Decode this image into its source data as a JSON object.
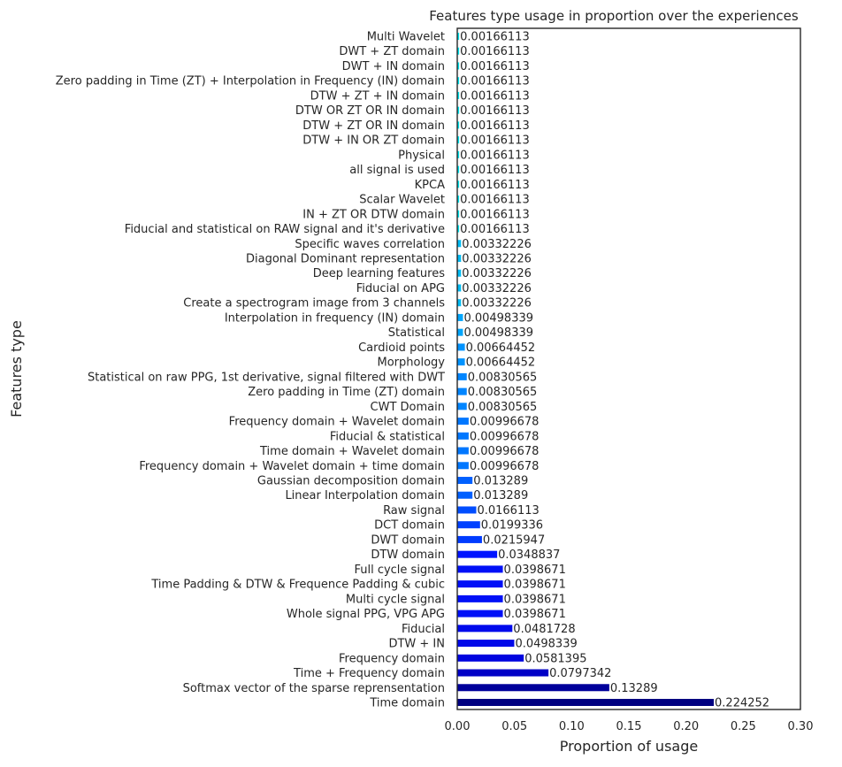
{
  "chart_data": {
    "type": "bar",
    "orientation": "horizontal",
    "title": "Features type usage in proportion over the experiences",
    "xlabel": "Proportion of usage",
    "ylabel": "Features type",
    "xlim": [
      0,
      0.3
    ],
    "xticks": [
      "0.00",
      "0.05",
      "0.10",
      "0.15",
      "0.20",
      "0.25",
      "0.30"
    ],
    "xtick_values": [
      0,
      0.05,
      0.1,
      0.15,
      0.2,
      0.25,
      0.3
    ],
    "grid": false,
    "color_scheme": "gradient from navy (largest) through blue to cyan (smallest)",
    "categories": [
      "Multi Wavelet",
      "DWT + ZT domain",
      "DWT + IN domain",
      "Zero padding in Time (ZT) + Interpolation in Frequency (IN) domain",
      "DTW + ZT + IN domain",
      "DTW OR ZT OR IN domain",
      "DTW + ZT OR IN domain",
      "DTW + IN OR ZT domain",
      "Physical",
      "all signal is used",
      "KPCA",
      "Scalar Wavelet",
      "IN + ZT OR DTW domain",
      "Fiducial and statistical on RAW signal and it's derivative",
      "Specific waves correlation",
      "Diagonal Dominant representation",
      "Deep learning features",
      "Fiducial on APG",
      "Create a spectrogram image from 3 channels",
      "Interpolation in frequency (IN) domain",
      "Statistical",
      "Cardioid points",
      "Morphology",
      "Statistical on raw PPG, 1st derivative, signal filtered with DWT",
      "Zero padding in Time (ZT) domain",
      "CWT Domain",
      "Frequency  domain + Wavelet domain",
      "Fiducial & statistical",
      "Time domain + Wavelet domain",
      "Frequency  domain + Wavelet domain + time domain",
      "Gaussian decomposition domain",
      "Linear Interpolation domain",
      "Raw signal",
      "DCT domain",
      "DWT domain",
      "DTW domain",
      "Full cycle signal",
      "Time Padding & DTW & Frequence Padding & cubic",
      "Multi cycle signal",
      "Whole signal PPG, VPG APG",
      "Fiducial",
      "DTW + IN",
      "Frequency domain",
      "Time + Frequency domain",
      "Softmax vector of the sparse reprensentation",
      "Time domain"
    ],
    "values": [
      0.00166113,
      0.00166113,
      0.00166113,
      0.00166113,
      0.00166113,
      0.00166113,
      0.00166113,
      0.00166113,
      0.00166113,
      0.00166113,
      0.00166113,
      0.00166113,
      0.00166113,
      0.00166113,
      0.00332226,
      0.00332226,
      0.00332226,
      0.00332226,
      0.00332226,
      0.00498339,
      0.00498339,
      0.00664452,
      0.00664452,
      0.00830565,
      0.00830565,
      0.00830565,
      0.00996678,
      0.00996678,
      0.00996678,
      0.00996678,
      0.013289,
      0.013289,
      0.0166113,
      0.0199336,
      0.0215947,
      0.0348837,
      0.0398671,
      0.0398671,
      0.0398671,
      0.0398671,
      0.0481728,
      0.0498339,
      0.0581395,
      0.0797342,
      0.13289,
      0.224252
    ],
    "labels": [
      "0.00166113",
      "0.00166113",
      "0.00166113",
      "0.00166113",
      "0.00166113",
      "0.00166113",
      "0.00166113",
      "0.00166113",
      "0.00166113",
      "0.00166113",
      "0.00166113",
      "0.00166113",
      "0.00166113",
      "0.00166113",
      "0.00332226",
      "0.00332226",
      "0.00332226",
      "0.00332226",
      "0.00332226",
      "0.00498339",
      "0.00498339",
      "0.00664452",
      "0.00664452",
      "0.00830565",
      "0.00830565",
      "0.00830565",
      "0.00996678",
      "0.00996678",
      "0.00996678",
      "0.00996678",
      "0.013289",
      "0.013289",
      "0.0166113",
      "0.0199336",
      "0.0215947",
      "0.0348837",
      "0.0398671",
      "0.0398671",
      "0.0398671",
      "0.0398671",
      "0.0481728",
      "0.0498339",
      "0.0581395",
      "0.0797342",
      "0.13289",
      "0.224252"
    ]
  }
}
